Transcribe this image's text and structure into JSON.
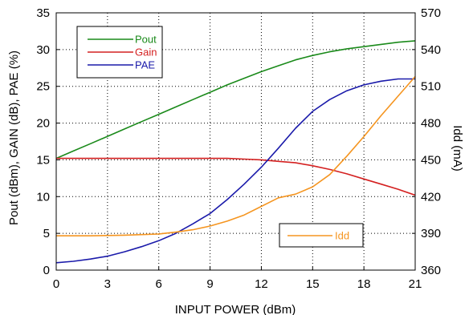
{
  "chart_data": {
    "type": "line",
    "title": "",
    "xlabel": "INPUT POWER (dBm)",
    "ylabel": "Pout (dBm), GAIN (dB), PAE (%)",
    "y2label": "Idd (mA)",
    "xlim": [
      0,
      21
    ],
    "ylim": [
      0,
      35
    ],
    "y2lim": [
      360,
      570
    ],
    "xticks": [
      "0",
      "3",
      "6",
      "9",
      "12",
      "15",
      "18",
      "21"
    ],
    "yticks": [
      "0",
      "5",
      "10",
      "15",
      "20",
      "25",
      "30",
      "35"
    ],
    "y2ticks": [
      "360",
      "390",
      "420",
      "450",
      "480",
      "510",
      "540",
      "570"
    ],
    "grid": true,
    "legend_left": {
      "placement": "top-left",
      "entries": [
        "Pout",
        "Gain",
        "PAE"
      ]
    },
    "legend_right": {
      "placement": "bottom-right",
      "entries": [
        "Idd"
      ]
    },
    "colors": {
      "Pout": "#1a8a1a",
      "Gain": "#d42020",
      "PAE": "#1a1aaa",
      "Idd": "#f59520"
    },
    "series": [
      {
        "name": "Pout",
        "axis": "left",
        "x": [
          0,
          1,
          2,
          3,
          4,
          5,
          6,
          7,
          8,
          9,
          10,
          11,
          12,
          13,
          14,
          15,
          16,
          17,
          18,
          19,
          20,
          21
        ],
        "values": [
          15.2,
          16.2,
          17.2,
          18.2,
          19.2,
          20.2,
          21.2,
          22.2,
          23.2,
          24.2,
          25.2,
          26.1,
          27.0,
          27.8,
          28.6,
          29.2,
          29.7,
          30.1,
          30.4,
          30.7,
          31.0,
          31.2
        ]
      },
      {
        "name": "Gain",
        "axis": "left",
        "x": [
          0,
          3,
          6,
          9,
          10,
          11,
          12,
          13,
          14,
          15,
          16,
          17,
          18,
          19,
          20,
          21
        ],
        "values": [
          15.2,
          15.2,
          15.2,
          15.2,
          15.2,
          15.1,
          15.0,
          14.8,
          14.6,
          14.2,
          13.7,
          13.1,
          12.4,
          11.7,
          11.0,
          10.2
        ]
      },
      {
        "name": "PAE",
        "axis": "left",
        "x": [
          0,
          1,
          2,
          3,
          4,
          5,
          6,
          7,
          8,
          9,
          10,
          11,
          12,
          13,
          14,
          15,
          16,
          17,
          18,
          19,
          20,
          21
        ],
        "values": [
          1.0,
          1.2,
          1.5,
          1.9,
          2.5,
          3.2,
          4.0,
          5.0,
          6.3,
          7.7,
          9.6,
          11.7,
          14.0,
          16.6,
          19.3,
          21.6,
          23.2,
          24.4,
          25.2,
          25.7,
          26.0,
          26.0
        ]
      },
      {
        "name": "Idd",
        "axis": "right",
        "x": [
          0,
          2,
          4,
          6,
          7,
          8,
          9,
          10,
          11,
          12,
          13,
          14,
          15,
          16,
          17,
          18,
          19,
          20,
          21
        ],
        "values": [
          388,
          388,
          388.5,
          389.5,
          391,
          393,
          396,
          400,
          405,
          412,
          419,
          422,
          428,
          438,
          453,
          469,
          486,
          502,
          518
        ]
      }
    ]
  }
}
